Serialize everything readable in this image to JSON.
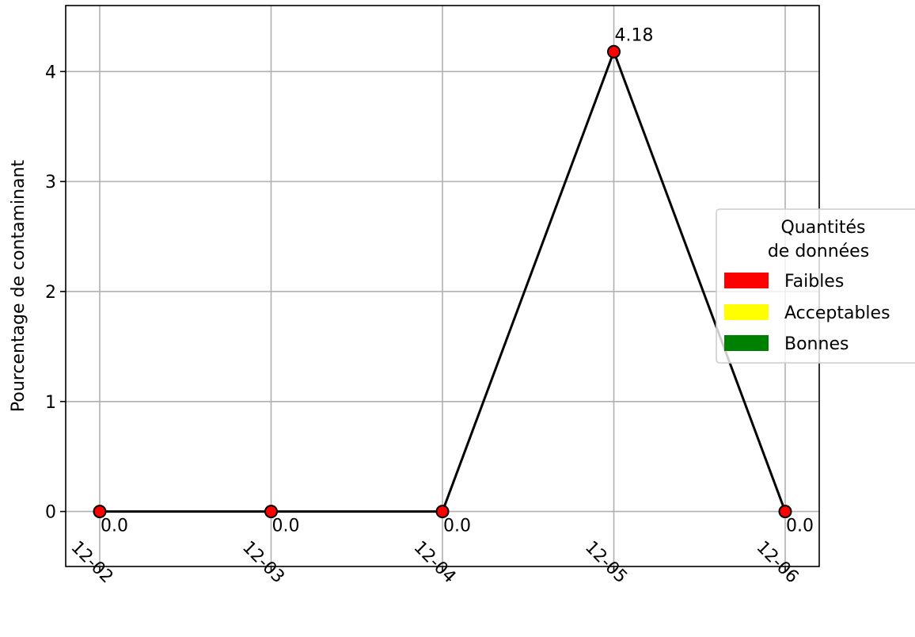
{
  "chart_data": {
    "type": "line",
    "title": "",
    "xlabel": "",
    "ylabel": "Pourcentage de contaminant",
    "categories": [
      "12-02",
      "12-03",
      "12-04",
      "12-05",
      "12-06"
    ],
    "values": [
      0.0,
      0.0,
      0.0,
      4.18,
      0.0
    ],
    "data_labels": [
      "0.0",
      "0.0",
      "0.0",
      "4.18",
      "0.0"
    ],
    "ylim": [
      -0.5,
      4.6
    ],
    "yticks": [
      0,
      1,
      2,
      3,
      4
    ],
    "grid": true,
    "line_color": "#000000",
    "marker_color": "#ff0000",
    "legend": {
      "placement": "right",
      "title_line1": "Quantités",
      "title_line2": "de données",
      "entries": [
        {
          "label": "Faibles",
          "color": "#ff0000"
        },
        {
          "label": "Acceptables",
          "color": "#ffff00"
        },
        {
          "label": "Bonnes",
          "color": "#008000"
        }
      ]
    }
  }
}
